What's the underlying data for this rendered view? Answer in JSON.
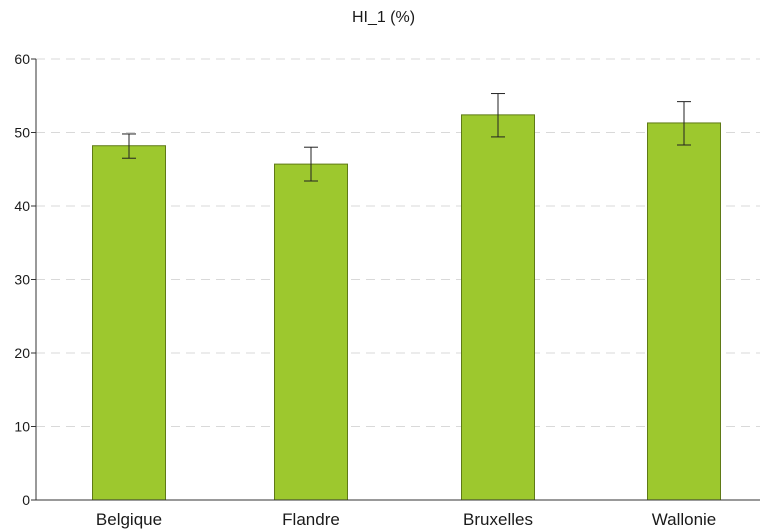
{
  "chart_data": {
    "type": "bar",
    "title": "HI_1 (%)",
    "xlabel": "",
    "ylabel": "",
    "categories": [
      "Belgique",
      "Flandre",
      "Bruxelles",
      "Wallonie"
    ],
    "values": [
      48.2,
      45.7,
      52.4,
      51.3
    ],
    "error_low": [
      46.5,
      43.4,
      49.4,
      48.3
    ],
    "error_high": [
      49.8,
      48.0,
      55.3,
      54.2
    ],
    "ylim": [
      0,
      60
    ],
    "yticks": [
      0,
      10,
      20,
      30,
      40,
      50,
      60
    ],
    "grid": true,
    "colors": {
      "bar": "#9dc82e",
      "bar_stroke": "#5f7a16",
      "grid": "#d9d9d9",
      "axis": "#333333"
    }
  }
}
